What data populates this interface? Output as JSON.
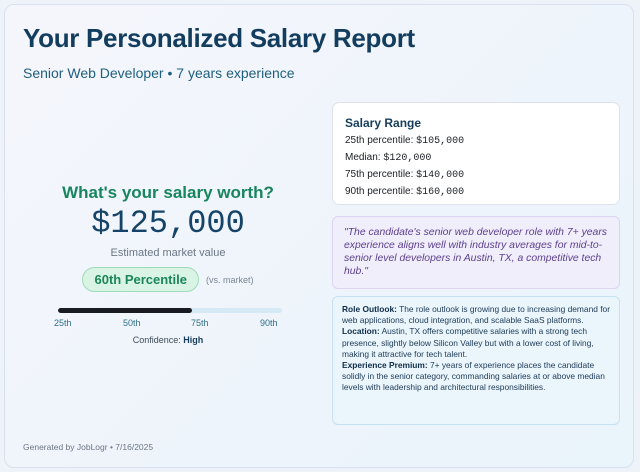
{
  "report": {
    "title": "Your Personalized Salary Report",
    "subtitle": "Senior Web Developer • 7 years experience"
  },
  "worth": {
    "question": "What's your salary worth?",
    "amount": "$125,000",
    "estimate_label": "Estimated market value",
    "percentile_badge": "60th Percentile",
    "vs_label": "(vs. market)",
    "percentile_value": 60,
    "ticks": [
      "25th",
      "50th",
      "75th",
      "90th"
    ],
    "confidence_label": "Confidence:",
    "confidence_value": "High"
  },
  "salary_range": {
    "title": "Salary Range",
    "rows": [
      {
        "label": "25th percentile:",
        "value": "$105,000"
      },
      {
        "label": "Median:",
        "value": "$120,000"
      },
      {
        "label": "75th percentile:",
        "value": "$140,000"
      },
      {
        "label": "90th percentile:",
        "value": "$160,000"
      }
    ]
  },
  "quote": "\"The candidate's senior web developer role with 7+ years experience aligns well with industry averages for mid-to-senior level developers in Austin, TX, a competitive tech hub.\"",
  "insights": [
    {
      "label": "Role Outlook:",
      "text": "The role outlook is growing due to increasing demand for web applications, cloud integration, and scalable SaaS platforms."
    },
    {
      "label": "Location:",
      "text": "Austin, TX offers competitive salaries with a strong tech presence, slightly below Silicon Valley but with a lower cost of living, making it attractive for tech talent."
    },
    {
      "label": "Experience Premium:",
      "text": "7+ years of experience places the candidate solidly in the senior category, commanding salaries at or above median levels with leadership and architectural responsibilities."
    }
  ],
  "footer": "Generated by JobLogr • 7/16/2025",
  "colors": {
    "title": "#133d5f",
    "accent_green": "#17855d",
    "bar_fill": "#181c22",
    "quote_text": "#5a3f8e"
  }
}
